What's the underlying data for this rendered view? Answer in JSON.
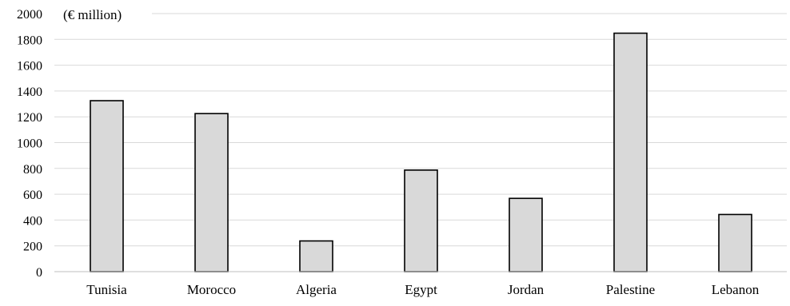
{
  "chart_data": {
    "type": "bar",
    "unit_label": "(€ million)",
    "categories": [
      "Tunisia",
      "Morocco",
      "Algeria",
      "Egypt",
      "Jordan",
      "Palestine",
      "Lebanon"
    ],
    "values": [
      1325,
      1225,
      238,
      787,
      568,
      1848,
      443
    ],
    "ylim": [
      0,
      2000
    ],
    "yticks": [
      0,
      200,
      400,
      600,
      800,
      1000,
      1200,
      1400,
      1600,
      1800,
      2000
    ],
    "grid": true,
    "legend": "none",
    "colors": {
      "bar_fill": "#d9d9d9",
      "bar_stroke": "#000000",
      "grid": "#d9d9d9",
      "axis": "#bfbfbf"
    }
  }
}
